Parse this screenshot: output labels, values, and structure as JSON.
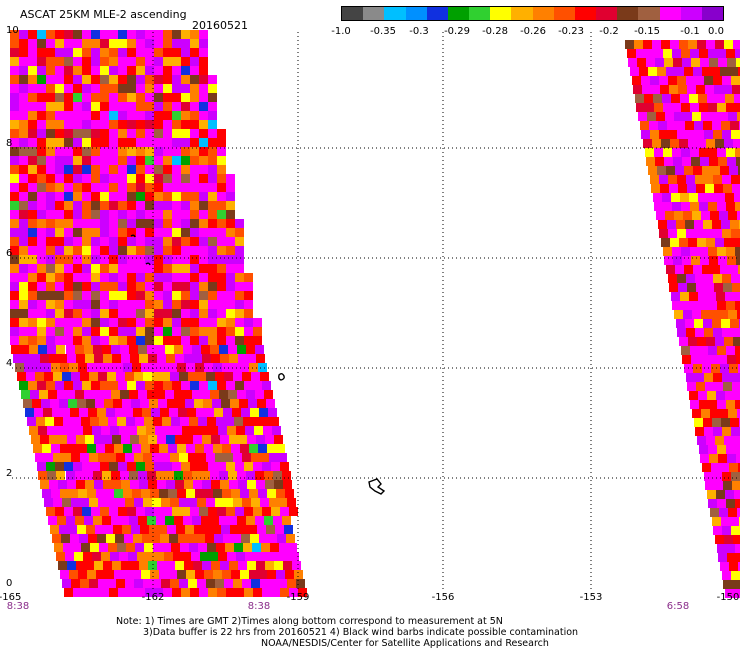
{
  "title": "ASCAT 25KM MLE-2 ascending",
  "date": "20160521",
  "colorbar": {
    "colors": [
      "#444444",
      "#8a8a8a",
      "#00bfff",
      "#0090ff",
      "#1030e0",
      "#00a000",
      "#30d030",
      "#ffff00",
      "#ffb000",
      "#ff8000",
      "#ff5000",
      "#ff0000",
      "#e00030",
      "#7a3a1a",
      "#a06040",
      "#ff00ff",
      "#cc00ff",
      "#8800cc"
    ],
    "labels": [
      "-1.0",
      "-0.35",
      "-0.3",
      "-0.29",
      "-0.28",
      "-0.26",
      "-0.23",
      "-0.2",
      "-0.15",
      "-0.1",
      "0.0"
    ]
  },
  "axes": {
    "y_ticks": [
      "10",
      "8",
      "6",
      "4",
      "2",
      "0"
    ],
    "x_ticks": [
      "-165",
      "-162",
      "-159",
      "-156",
      "-153",
      "-150"
    ],
    "time_ticks": [
      "8:38",
      "8:38",
      "6:58"
    ]
  },
  "notes": [
    "Note: 1) Times are GMT 2)Times along bottom correspond to measurement at 5N",
    "3)Data buffer is 22 hrs from 20160521 4) Black wind barbs indicate possible contamination",
    "NOAA/NESDIS/Center for Satellite Applications and Research"
  ]
}
